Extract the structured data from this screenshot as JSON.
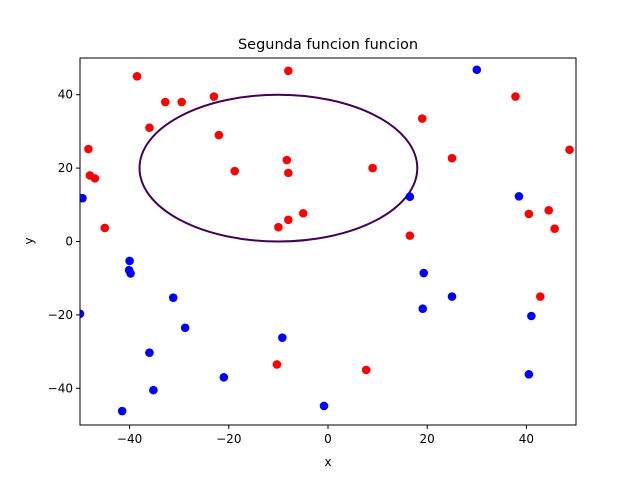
{
  "chart_data": {
    "type": "scatter",
    "title": "Segunda funcion funcion",
    "xlabel": "x",
    "ylabel": "y",
    "xlim": [
      -50,
      50
    ],
    "ylim": [
      -50,
      50
    ],
    "xticks": [
      -40,
      -20,
      0,
      20,
      40
    ],
    "yticks": [
      -40,
      -20,
      0,
      20,
      40
    ],
    "grid": false,
    "colors": {
      "red": "#ff0000",
      "blue": "#0000ff",
      "curve": "#440154"
    },
    "ellipse": {
      "center": [
        -10,
        20
      ],
      "semi_axes": [
        28,
        20
      ]
    },
    "series": [
      {
        "color": "#ff0000",
        "points": [
          [
            -38.5,
            45
          ],
          [
            -8,
            46.5
          ],
          [
            -32.8,
            38
          ],
          [
            -29.5,
            38
          ],
          [
            -23,
            39.5
          ],
          [
            -36,
            31
          ],
          [
            -22,
            29
          ],
          [
            -48.3,
            25.2
          ],
          [
            -48,
            18
          ],
          [
            -47,
            17.2
          ],
          [
            -18.8,
            19.2
          ],
          [
            -8.3,
            22.2
          ],
          [
            -8,
            18.7
          ],
          [
            9,
            20
          ],
          [
            19,
            33.5
          ],
          [
            25,
            22.7
          ],
          [
            -5,
            7.7
          ],
          [
            -8,
            5.9
          ],
          [
            -10,
            3.9
          ],
          [
            -45,
            3.7
          ],
          [
            16.5,
            1.6
          ],
          [
            37.8,
            39.5
          ],
          [
            48.7,
            25
          ],
          [
            44.5,
            8.5
          ],
          [
            40.5,
            7.5
          ],
          [
            45.7,
            3.5
          ],
          [
            42.8,
            -15
          ],
          [
            -10.3,
            -33.5
          ],
          [
            7.7,
            -35
          ]
        ]
      },
      {
        "color": "#0000ff",
        "points": [
          [
            30,
            46.8
          ],
          [
            -49.5,
            11.8
          ],
          [
            16.5,
            12.2
          ],
          [
            38.5,
            12.3
          ],
          [
            -40,
            -5.3
          ],
          [
            -40.1,
            -7.8
          ],
          [
            -39.8,
            -8.7
          ],
          [
            19.3,
            -8.6
          ],
          [
            -31.2,
            -15.3
          ],
          [
            25,
            -15
          ],
          [
            19.1,
            -18.3
          ],
          [
            -50,
            -19.7
          ],
          [
            41,
            -20.3
          ],
          [
            -28.8,
            -23.5
          ],
          [
            -9.2,
            -26.2
          ],
          [
            -36,
            -30.3
          ],
          [
            -21,
            -37
          ],
          [
            40.5,
            -36.2
          ],
          [
            -35.2,
            -40.5
          ],
          [
            -0.8,
            -44.8
          ],
          [
            -41.5,
            -46.2
          ]
        ]
      }
    ]
  }
}
